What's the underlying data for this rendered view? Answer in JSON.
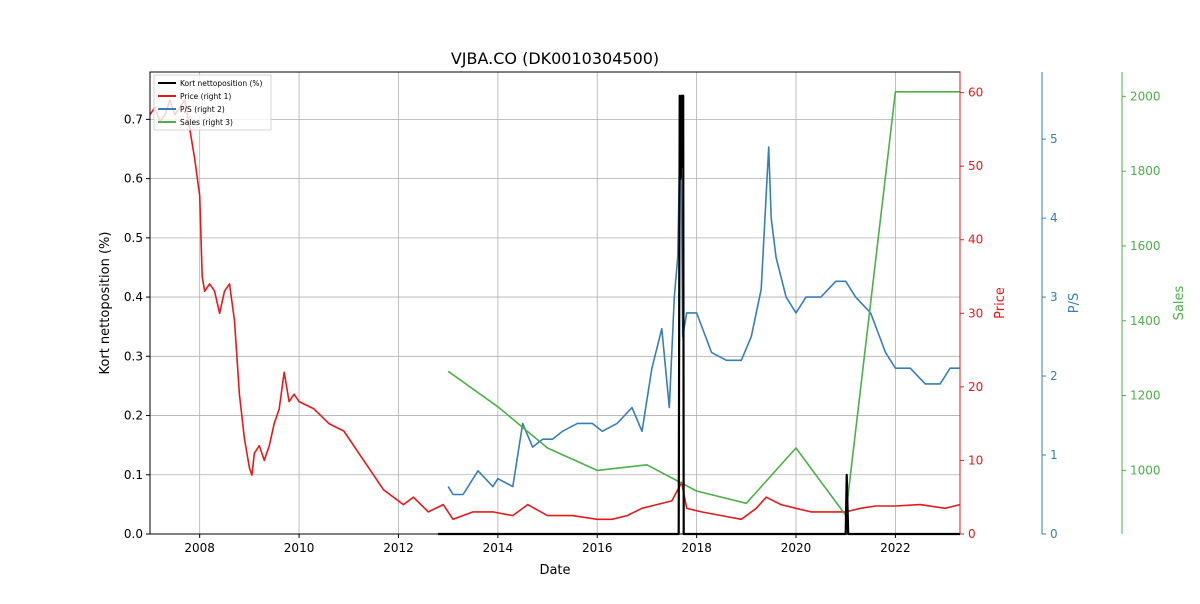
{
  "chart_data": {
    "type": "line",
    "title": "VJBA.CO (DK0010304500)",
    "xlabel": "Date",
    "x_ticks": [
      2008,
      2010,
      2012,
      2014,
      2016,
      2018,
      2020,
      2022
    ],
    "xlim": [
      2007.0,
      2023.3
    ],
    "grid": true,
    "legend": {
      "placement": "upper-left",
      "entries": [
        "Kort nettoposition (%)",
        "Price (right 1)",
        "P/S (right 2)",
        "Sales (right 3)"
      ]
    },
    "axes": {
      "left": {
        "label": "Kort nettoposition (%)",
        "ylim": [
          0,
          0.78
        ],
        "ticks": [
          0.0,
          0.1,
          0.2,
          0.3,
          0.4,
          0.5,
          0.6,
          0.7
        ],
        "tick_labels": [
          "0.0",
          "0.1",
          "0.2",
          "0.3",
          "0.4",
          "0.5",
          "0.6",
          "0.7"
        ],
        "color": "#000000"
      },
      "right1": {
        "label": "Price",
        "ylim": [
          0,
          62.8
        ],
        "ticks": [
          0,
          10,
          20,
          30,
          40,
          50,
          60
        ],
        "tick_labels": [
          "0",
          "10",
          "20",
          "30",
          "40",
          "50",
          "60"
        ],
        "color": "#e31a1c"
      },
      "right2": {
        "label": "P/S",
        "ylim": [
          0,
          5.85
        ],
        "ticks": [
          0,
          1,
          2,
          3,
          4,
          5
        ],
        "tick_labels": [
          "0",
          "1",
          "2",
          "3",
          "4",
          "5"
        ],
        "color": "#377eb8"
      },
      "right3": {
        "label": "Sales",
        "ylim": [
          830,
          2065
        ],
        "ticks": [
          1000,
          1200,
          1400,
          1600,
          1800,
          2000
        ],
        "tick_labels": [
          "1000",
          "1200",
          "1400",
          "1600",
          "1800",
          "2000"
        ],
        "color": "#4daf4a"
      }
    },
    "series": [
      {
        "name": "Kort nettoposition (%)",
        "axis": "left",
        "color": "#000000",
        "x": [
          2012.8,
          2017.55,
          2017.64,
          2017.66,
          2017.68,
          2017.7,
          2017.72,
          2017.73,
          2017.74,
          2017.76,
          2017.78,
          2021.0,
          2021.02,
          2021.05,
          2021.07,
          2023.3
        ],
        "y": [
          0.0,
          0.0,
          0.0,
          0.74,
          0.6,
          0.74,
          0.62,
          0.74,
          0.0,
          0.0,
          0.0,
          0.0,
          0.1,
          0.0,
          0.0,
          0.0
        ]
      },
      {
        "name": "Price (right 1)",
        "axis": "right1",
        "color": "#e31a1c",
        "x": [
          2007.0,
          2007.1,
          2007.2,
          2007.3,
          2007.4,
          2007.5,
          2007.6,
          2007.7,
          2007.8,
          2007.9,
          2008.0,
          2008.05,
          2008.1,
          2008.2,
          2008.3,
          2008.4,
          2008.5,
          2008.6,
          2008.7,
          2008.8,
          2008.9,
          2009.0,
          2009.05,
          2009.1,
          2009.2,
          2009.3,
          2009.4,
          2009.5,
          2009.6,
          2009.7,
          2009.8,
          2009.9,
          2010.0,
          2010.3,
          2010.6,
          2010.9,
          2011.2,
          2011.5,
          2011.7,
          2011.9,
          2012.1,
          2012.3,
          2012.6,
          2012.9,
          2013.1,
          2013.5,
          2013.9,
          2014.3,
          2014.6,
          2015.0,
          2015.5,
          2016.0,
          2016.3,
          2016.6,
          2016.9,
          2017.2,
          2017.5,
          2017.7,
          2017.8,
          2018.1,
          2018.5,
          2018.9,
          2019.2,
          2019.4,
          2019.7,
          2020.0,
          2020.3,
          2020.6,
          2020.9,
          2021.0,
          2021.3,
          2021.6,
          2022.0,
          2022.5,
          2023.0,
          2023.3
        ],
        "y": [
          57,
          58,
          56,
          57,
          59,
          57,
          58,
          59,
          55,
          51,
          46,
          35,
          33,
          34,
          33,
          30,
          33,
          34,
          29,
          19,
          13,
          9,
          8,
          11,
          12,
          10,
          12,
          15,
          17,
          22,
          18,
          19,
          18,
          17,
          15,
          14,
          11,
          8,
          6,
          5,
          4,
          5,
          3,
          4,
          2,
          3,
          3,
          2.5,
          4,
          2.5,
          2.5,
          2,
          2,
          2.5,
          3.5,
          4,
          4.5,
          7,
          3.5,
          3,
          2.5,
          2,
          3.5,
          5,
          4,
          3.5,
          3,
          3,
          3,
          3,
          3.5,
          3.8,
          3.8,
          4,
          3.5,
          4
        ]
      },
      {
        "name": "P/S (right 2)",
        "axis": "right2",
        "color": "#377eb8",
        "x": [
          2013.0,
          2013.1,
          2013.3,
          2013.6,
          2013.9,
          2014.0,
          2014.3,
          2014.5,
          2014.7,
          2014.9,
          2015.1,
          2015.3,
          2015.6,
          2015.9,
          2016.1,
          2016.4,
          2016.7,
          2016.9,
          2017.1,
          2017.3,
          2017.45,
          2017.55,
          2017.62,
          2017.68,
          2017.72,
          2017.8,
          2018.0,
          2018.3,
          2018.6,
          2018.9,
          2019.1,
          2019.3,
          2019.45,
          2019.5,
          2019.6,
          2019.8,
          2020.0,
          2020.2,
          2020.5,
          2020.8,
          2021.0,
          2021.2,
          2021.5,
          2021.8,
          2022.0,
          2022.3,
          2022.6,
          2022.9,
          2023.1,
          2023.3
        ],
        "y": [
          0.6,
          0.5,
          0.5,
          0.8,
          0.6,
          0.7,
          0.6,
          1.4,
          1.1,
          1.2,
          1.2,
          1.3,
          1.4,
          1.4,
          1.3,
          1.4,
          1.6,
          1.3,
          2.1,
          2.6,
          1.6,
          3.0,
          3.5,
          5.5,
          2.5,
          2.8,
          2.8,
          2.3,
          2.2,
          2.2,
          2.5,
          3.1,
          4.9,
          4.0,
          3.5,
          3.0,
          2.8,
          3.0,
          3.0,
          3.2,
          3.2,
          3.0,
          2.8,
          2.3,
          2.1,
          2.1,
          1.9,
          1.9,
          2.1,
          2.1
        ]
      },
      {
        "name": "Sales (right 3)",
        "axis": "right3",
        "color": "#4daf4a",
        "x": [
          2013.0,
          2014.0,
          2015.0,
          2016.0,
          2017.0,
          2018.0,
          2019.0,
          2020.0,
          2021.0,
          2022.0,
          2023.3
        ],
        "y": [
          1265,
          1170,
          1060,
          1000,
          1015,
          945,
          912,
          1060,
          880,
          2012,
          2012
        ]
      }
    ]
  }
}
